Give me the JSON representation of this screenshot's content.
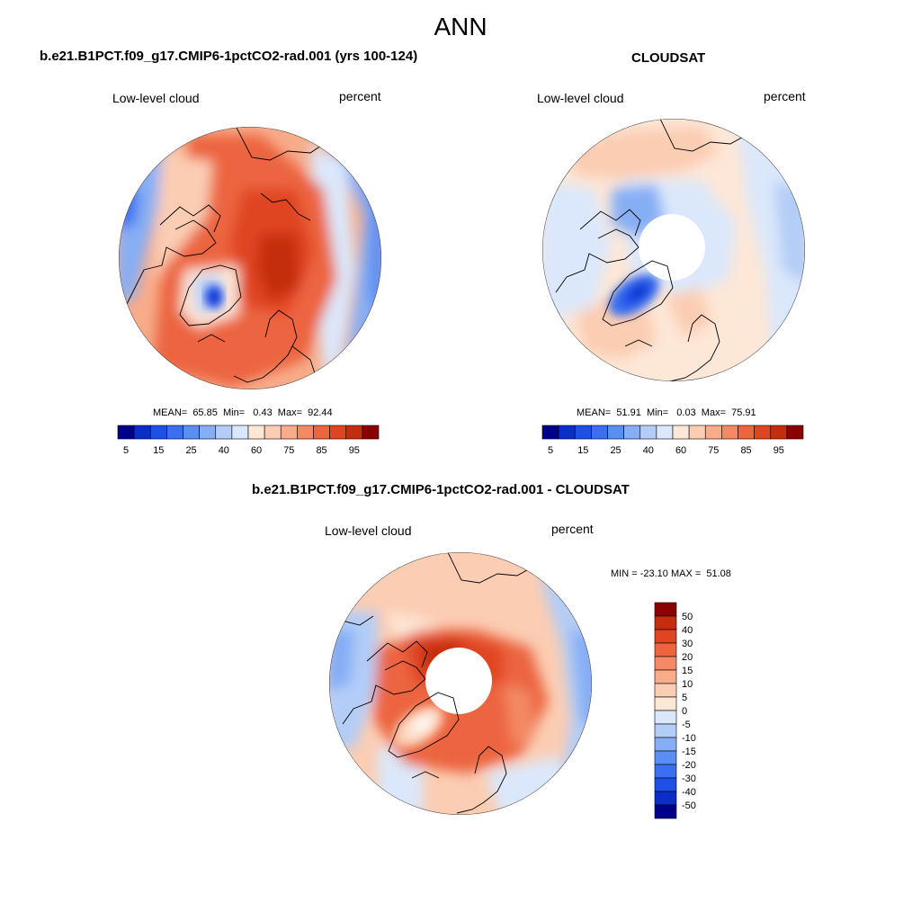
{
  "figure_title": "ANN",
  "panels": [
    {
      "title": "b.e21.B1PCT.f09_g17.CMIP6-1pctCO2-rad.001 (yrs 100-124)",
      "variable": "Low-level cloud",
      "units": "percent",
      "stats": "MEAN=  65.85  Min=   0.43  Max=  92.44"
    },
    {
      "title": "CLOUDSAT",
      "variable": "Low-level cloud",
      "units": "percent",
      "stats": "MEAN=  51.91  Min=   0.03  Max=  75.91"
    },
    {
      "title": "b.e21.B1PCT.f09_g17.CMIP6-1pctCO2-rad.001 - CLOUDSAT",
      "variable": "Low-level cloud",
      "units": "percent",
      "stats": "MIN = -23.10 MAX =  51.08"
    }
  ],
  "colors": {
    "abs_scale": [
      "#00008b",
      "#0a2fc8",
      "#1e4fe6",
      "#3b6ff0",
      "#5b8ef3",
      "#86aef5",
      "#b3cdf7",
      "#dbe8fb",
      "#fde7d7",
      "#fbcdb3",
      "#f8ac8a",
      "#f38a65",
      "#ec6540",
      "#e04521",
      "#c42e0f",
      "#8b0000"
    ],
    "diff_scale": [
      "#00008b",
      "#0a2fc8",
      "#1e4fe6",
      "#3b6ff0",
      "#5b8ef3",
      "#86aef5",
      "#b3cdf7",
      "#dbe8fb",
      "#fde7d7",
      "#fbcdb3",
      "#f8ac8a",
      "#f38a65",
      "#ec6540",
      "#e04521",
      "#c42e0f",
      "#8b0000"
    ]
  },
  "chart_data": [
    {
      "type": "heatmap",
      "projection": "north-polar-stereographic",
      "title": "b.e21.B1PCT.f09_g17.CMIP6-1pctCO2-rad.001 (yrs 100-124)",
      "variable": "Low-level cloud",
      "units": "percent",
      "mean": 65.85,
      "min": 0.43,
      "max": 92.44,
      "colorbar_ticks": [
        "5",
        "15",
        "25",
        "40",
        "60",
        "75",
        "85",
        "95"
      ]
    },
    {
      "type": "heatmap",
      "projection": "north-polar-stereographic",
      "title": "CLOUDSAT",
      "variable": "Low-level cloud",
      "units": "percent",
      "mean": 51.91,
      "min": 0.03,
      "max": 75.91,
      "colorbar_ticks": [
        "5",
        "15",
        "25",
        "40",
        "60",
        "75",
        "85",
        "95"
      ]
    },
    {
      "type": "heatmap",
      "projection": "north-polar-stereographic",
      "title": "b.e21.B1PCT.f09_g17.CMIP6-1pctCO2-rad.001 - CLOUDSAT",
      "variable": "Low-level cloud",
      "units": "percent",
      "min": -23.1,
      "max": 51.08,
      "colorbar_ticks": [
        "50",
        "40",
        "30",
        "20",
        "15",
        "10",
        "5",
        "0",
        "-5",
        "-10",
        "-15",
        "-20",
        "-30",
        "-40",
        "-50"
      ]
    }
  ]
}
